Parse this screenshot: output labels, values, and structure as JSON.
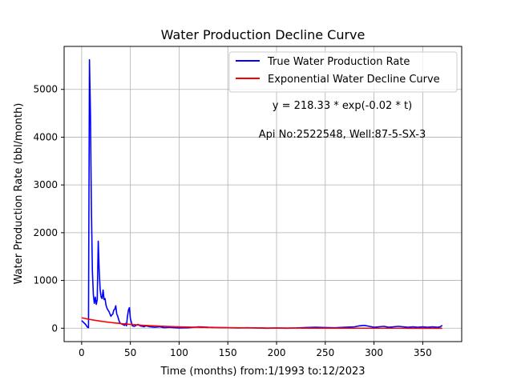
{
  "chart_data": {
    "type": "line",
    "title": "Water Production Decline Curve",
    "xlabel": "Time (months) from:1/1993 to:12/2023",
    "ylabel": "Water Production Rate (bbl/month)",
    "xlim": [
      -18,
      390
    ],
    "ylim": [
      -280,
      5900
    ],
    "x_ticks": [
      0,
      50,
      100,
      150,
      200,
      250,
      300,
      350
    ],
    "y_ticks": [
      0,
      1000,
      2000,
      3000,
      4000,
      5000
    ],
    "grid": true,
    "legend_position": "top-right",
    "annotations": [
      {
        "text": "y = 218.33 * exp(-0.02 * t)"
      },
      {
        "text": "Api No:2522548, Well:87-5-SX-3"
      }
    ],
    "series": [
      {
        "name": "True Water Production Rate",
        "color": "#0000ff",
        "points": [
          [
            0,
            160
          ],
          [
            2,
            120
          ],
          [
            4,
            80
          ],
          [
            6,
            20
          ],
          [
            7,
            10
          ],
          [
            8,
            5620
          ],
          [
            9,
            4500
          ],
          [
            10,
            2500
          ],
          [
            11,
            1200
          ],
          [
            12,
            700
          ],
          [
            13,
            520
          ],
          [
            14,
            650
          ],
          [
            15,
            500
          ],
          [
            16,
            600
          ],
          [
            17,
            1820
          ],
          [
            18,
            1200
          ],
          [
            19,
            800
          ],
          [
            20,
            650
          ],
          [
            21,
            620
          ],
          [
            22,
            800
          ],
          [
            23,
            600
          ],
          [
            24,
            620
          ],
          [
            25,
            480
          ],
          [
            26,
            420
          ],
          [
            27,
            380
          ],
          [
            28,
            350
          ],
          [
            29,
            300
          ],
          [
            30,
            250
          ],
          [
            31,
            280
          ],
          [
            32,
            300
          ],
          [
            33,
            380
          ],
          [
            34,
            400
          ],
          [
            35,
            470
          ],
          [
            36,
            300
          ],
          [
            37,
            250
          ],
          [
            38,
            180
          ],
          [
            39,
            120
          ],
          [
            40,
            100
          ],
          [
            42,
            80
          ],
          [
            44,
            60
          ],
          [
            45,
            100
          ],
          [
            46,
            50
          ],
          [
            47,
            250
          ],
          [
            48,
            380
          ],
          [
            49,
            430
          ],
          [
            50,
            200
          ],
          [
            52,
            50
          ],
          [
            54,
            40
          ],
          [
            56,
            60
          ],
          [
            58,
            80
          ],
          [
            60,
            50
          ],
          [
            62,
            40
          ],
          [
            64,
            30
          ],
          [
            66,
            50
          ],
          [
            70,
            30
          ],
          [
            75,
            20
          ],
          [
            80,
            30
          ],
          [
            85,
            10
          ],
          [
            90,
            20
          ],
          [
            95,
            10
          ],
          [
            100,
            5
          ],
          [
            110,
            10
          ],
          [
            120,
            30
          ],
          [
            130,
            20
          ],
          [
            140,
            15
          ],
          [
            150,
            10
          ],
          [
            160,
            5
          ],
          [
            170,
            10
          ],
          [
            180,
            5
          ],
          [
            190,
            0
          ],
          [
            200,
            5
          ],
          [
            210,
            0
          ],
          [
            220,
            5
          ],
          [
            230,
            15
          ],
          [
            240,
            20
          ],
          [
            250,
            15
          ],
          [
            260,
            10
          ],
          [
            270,
            20
          ],
          [
            280,
            30
          ],
          [
            285,
            50
          ],
          [
            290,
            60
          ],
          [
            295,
            40
          ],
          [
            300,
            20
          ],
          [
            305,
            30
          ],
          [
            310,
            40
          ],
          [
            315,
            20
          ],
          [
            320,
            30
          ],
          [
            325,
            40
          ],
          [
            330,
            30
          ],
          [
            335,
            20
          ],
          [
            340,
            30
          ],
          [
            345,
            20
          ],
          [
            350,
            30
          ],
          [
            355,
            20
          ],
          [
            360,
            30
          ],
          [
            365,
            20
          ],
          [
            368,
            30
          ],
          [
            370,
            60
          ]
        ]
      },
      {
        "name": "Exponential Water Decline Curve",
        "color": "#ff0000",
        "fit": {
          "a": 218.33,
          "b": -0.02
        },
        "x_range": [
          0,
          370
        ]
      }
    ]
  }
}
